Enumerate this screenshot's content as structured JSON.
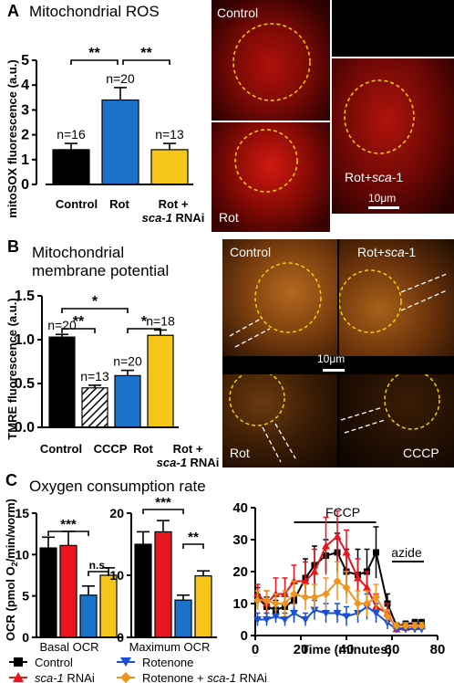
{
  "panels": {
    "A": {
      "letter": "A",
      "title": "Mitochondrial ROS",
      "chart_data": {
        "type": "bar",
        "ylabel": "mitoSOX fluorescence (a.u.)",
        "ylim": [
          0,
          5
        ],
        "yticks": [
          "0",
          "1",
          "2",
          "3",
          "4",
          "5"
        ],
        "categories": [
          "Control",
          "Rot",
          "Rot + sca-1 RNAi"
        ],
        "values": [
          1.4,
          3.4,
          1.4
        ],
        "errors": [
          0.25,
          0.5,
          0.25
        ],
        "n_labels": [
          "n=16",
          "n=20",
          "n=13"
        ],
        "colors": [
          "#000000",
          "#1a73c8",
          "#f5c518"
        ],
        "significance": [
          "**",
          "**"
        ]
      },
      "micrographs": {
        "control": "Control",
        "rot": "Rot",
        "rot_sca": "Rot+sca-1",
        "scale_bar": "10μm"
      }
    },
    "B": {
      "letter": "B",
      "title_line1": "Mitochondrial",
      "title_line2": "membrane potential",
      "chart_data": {
        "type": "bar",
        "ylabel": "TMRE fluorescence (a.u.)",
        "ylim": [
          0,
          1.5
        ],
        "yticks": [
          "0.0",
          "0.5",
          "1.0",
          "1.5"
        ],
        "categories": [
          "Control",
          "CCCP",
          "Rot",
          "Rot + sca-1 RNAi"
        ],
        "values": [
          1.03,
          0.45,
          0.59,
          1.05
        ],
        "errors": [
          0.03,
          0.03,
          0.06,
          0.06
        ],
        "n_labels": [
          "n=20",
          "n=13",
          "n=20",
          "n=18"
        ],
        "colors": [
          "#000000",
          "hatched",
          "#1a73c8",
          "#f5c518"
        ],
        "significance": [
          "*",
          "**",
          "*"
        ]
      },
      "micrographs": {
        "control": "Control",
        "rot_sca": "Rot+sca-1",
        "rot": "Rot",
        "cccp": "CCCP",
        "scale_bar": "10μm"
      }
    },
    "C": {
      "letter": "C",
      "title": "Oxygen consumption rate",
      "ylabel": "OCR (pmol O2/min/worm)",
      "chart_data": [
        {
          "type": "bar",
          "xlabel": "Basal OCR",
          "ylim": [
            0,
            15
          ],
          "yticks": [
            "0",
            "5",
            "10",
            "15"
          ],
          "series_order": [
            "Control",
            "sca-1 RNAi",
            "Rotenone",
            "Rotenone + sca-1 RNAi"
          ],
          "values": [
            10.8,
            11.1,
            5.1,
            7.5
          ],
          "errors": [
            1.3,
            1.7,
            1.1,
            0.9
          ],
          "colors": [
            "#000000",
            "#e8141e",
            "#1a73c8",
            "#f5c518"
          ],
          "significance": [
            "***",
            "n.s."
          ]
        },
        {
          "type": "bar",
          "xlabel": "Maximum OCR",
          "ylim": [
            0,
            20
          ],
          "yticks": [
            "0",
            "10",
            "20"
          ],
          "series_order": [
            "Control",
            "sca-1 RNAi",
            "Rotenone",
            "Rotenone + sca-1 RNAi"
          ],
          "values": [
            15.0,
            17.0,
            6.0,
            9.9
          ],
          "errors": [
            2.0,
            1.8,
            0.8,
            0.8
          ],
          "colors": [
            "#000000",
            "#e8141e",
            "#1a73c8",
            "#f5c518"
          ],
          "significance": [
            "***",
            "**"
          ]
        },
        {
          "type": "line",
          "xlabel": "Time (minutes)",
          "xlim": [
            0,
            80
          ],
          "ylim": [
            0,
            40
          ],
          "xticks": [
            "0",
            "20",
            "40",
            "60",
            "80"
          ],
          "yticks": [
            "0",
            "10",
            "20",
            "30",
            "40"
          ],
          "annotations": [
            "FCCP",
            "azide"
          ],
          "x": [
            1,
            5,
            9,
            13,
            17,
            22,
            26,
            31,
            36,
            40,
            45,
            49,
            53,
            58,
            62,
            66,
            70,
            73
          ],
          "series": [
            {
              "name": "Control",
              "color": "#000000",
              "values": [
                12,
                9,
                8,
                9,
                11,
                18,
                22,
                25,
                26,
                20,
                19,
                20,
                26,
                10,
                3,
                3.5,
                4,
                4
              ],
              "errors": [
                3,
                3,
                3,
                4,
                6,
                6,
                6,
                5,
                6,
                7,
                8,
                7,
                8,
                3,
                1,
                1,
                1,
                1
              ]
            },
            {
              "name": "sca-1 RNAi",
              "color": "#e8141e",
              "values": [
                13,
                10,
                13,
                13,
                17,
                17,
                20,
                28,
                31,
                26,
                18,
                15,
                9,
                7,
                2,
                2.5,
                3,
                3
              ],
              "errors": [
                3,
                4,
                5,
                5,
                5,
                6,
                7,
                9,
                8,
                7,
                6,
                5,
                4,
                3,
                1,
                1,
                1,
                1
              ]
            },
            {
              "name": "Rotenone",
              "color": "#1a4fd8",
              "values": [
                5,
                5,
                6,
                5,
                7,
                5,
                8,
                7,
                7,
                6,
                7,
                9,
                7,
                4,
                2,
                2,
                2,
                2
              ],
              "errors": [
                2,
                2,
                2,
                2,
                3,
                2,
                3,
                3,
                3,
                3,
                3,
                4,
                3,
                2,
                1,
                1,
                1,
                1
              ]
            },
            {
              "name": "Rotenone + sca-1 RNAi",
              "color": "#f0941e",
              "values": [
                11,
                11,
                10,
                10,
                13,
                12,
                12,
                13,
                17,
                15,
                10,
                10,
                12,
                6,
                3,
                3,
                3,
                3
              ],
              "errors": [
                3,
                3,
                3,
                4,
                4,
                4,
                4,
                5,
                6,
                5,
                4,
                4,
                4,
                2,
                1,
                1,
                1,
                1
              ]
            }
          ]
        }
      ],
      "legend": [
        "Control",
        "sca-1 RNAi",
        "Rotenone",
        "Rotenone + sca-1 RNAi"
      ]
    }
  }
}
